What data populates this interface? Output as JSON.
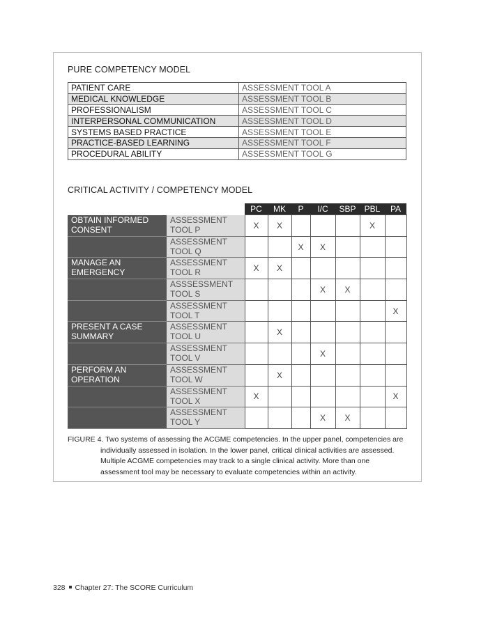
{
  "upper": {
    "title": "PURE COMPETENCY MODEL",
    "rows": [
      {
        "competency": "PATIENT CARE",
        "tool": "ASSESSMENT TOOL A"
      },
      {
        "competency": "MEDICAL KNOWLEDGE",
        "tool": "ASSESSMENT TOOL B"
      },
      {
        "competency": "PROFESSIONALISM",
        "tool": "ASSESSMENT TOOL C"
      },
      {
        "competency": "INTERPERSONAL COMMUNICATION",
        "tool": "ASSESSMENT TOOL D"
      },
      {
        "competency": "SYSTEMS BASED PRACTICE",
        "tool": "ASSESSMENT TOOL E"
      },
      {
        "competency": "PRACTICE-BASED LEARNING",
        "tool": "ASSESSMENT TOOL F"
      },
      {
        "competency": "PROCEDURAL ABILITY",
        "tool": "ASSESSMENT TOOL G"
      }
    ]
  },
  "lower": {
    "title": "CRITICAL ACTIVITY / COMPETENCY MODEL",
    "columns": [
      "PC",
      "MK",
      "P",
      "I/C",
      "SBP",
      "PBL",
      "PA"
    ],
    "rows": [
      {
        "activity": "OBTAIN INFORMED CONSENT",
        "tool_1": "ASSESSMENT",
        "tool_2": "TOOL P",
        "marks": [
          "X",
          "X",
          "",
          "",
          "",
          "X",
          ""
        ]
      },
      {
        "activity": "",
        "tool_1": "ASSESSMENT",
        "tool_2": "TOOL Q",
        "marks": [
          "",
          "",
          "X",
          "X",
          "",
          "",
          ""
        ]
      },
      {
        "activity": "MANAGE AN EMERGENCY",
        "tool_1": "ASSESSMENT",
        "tool_2": "TOOL R",
        "marks": [
          "X",
          "X",
          "",
          "",
          "",
          "",
          ""
        ]
      },
      {
        "activity": "",
        "tool_1": "ASSSESSMENT",
        "tool_2": "TOOL S",
        "marks": [
          "",
          "",
          "",
          "X",
          "X",
          "",
          ""
        ]
      },
      {
        "activity": "",
        "tool_1": "ASSESSMENT",
        "tool_2": "TOOL T",
        "marks": [
          "",
          "",
          "",
          "",
          "",
          "",
          "X"
        ]
      },
      {
        "activity": "PRESENT A CASE SUMMARY",
        "tool_1": "ASSESSMENT",
        "tool_2": "TOOL U",
        "marks": [
          "",
          "X",
          "",
          "",
          "",
          "",
          ""
        ]
      },
      {
        "activity": "",
        "tool_1": "ASSESSMENT",
        "tool_2": "TOOL V",
        "marks": [
          "",
          "",
          "",
          "X",
          "",
          "",
          ""
        ]
      },
      {
        "activity": "PERFORM AN OPERATION",
        "tool_1": "ASSESSMENT",
        "tool_2": "TOOL W",
        "marks": [
          "",
          "X",
          "",
          "",
          "",
          "",
          ""
        ]
      },
      {
        "activity": "",
        "tool_1": "ASSESSMENT",
        "tool_2": "TOOL X",
        "marks": [
          "X",
          "",
          "",
          "",
          "",
          "",
          "X"
        ]
      },
      {
        "activity": "",
        "tool_1": "ASSESSMENT",
        "tool_2": "TOOL Y",
        "marks": [
          "",
          "",
          "",
          "X",
          "X",
          "",
          ""
        ]
      }
    ]
  },
  "caption": {
    "label": "FIGURE 4.",
    "line1": "Two systems of assessing the ACGME competencies. In the upper panel, competencies are",
    "rest": "individually assessed in isolation. In the lower panel, critical clinical activities are assessed. Multiple ACGME competencies may track to a single clinical activity. More than one assessment tool may be necessary to evaluate competencies within an activity."
  },
  "footer": {
    "page_number": "328",
    "chapter": "Chapter 27: The SCORE Curriculum"
  }
}
